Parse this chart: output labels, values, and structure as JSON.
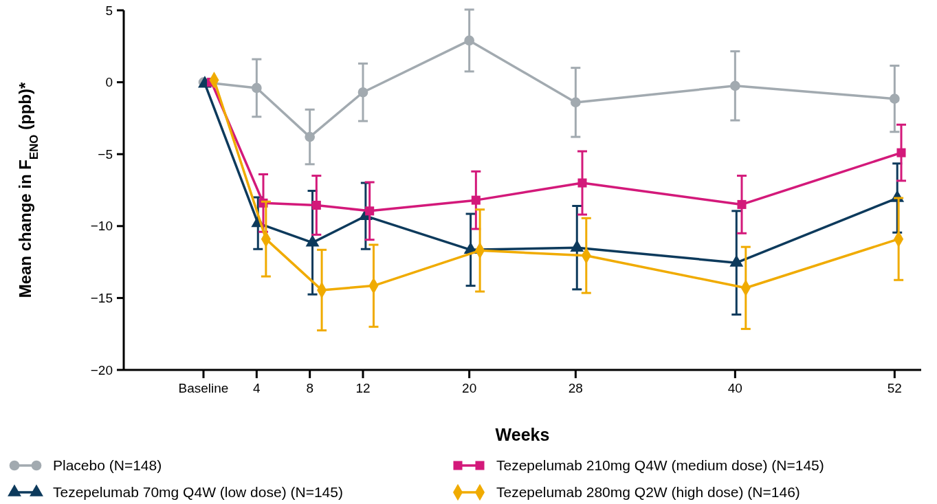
{
  "chart_data": {
    "type": "line",
    "xlabel": "Weeks",
    "ylabel": "Mean change in F$_{ENO}$ (ppb)*",
    "xlim": [
      -6,
      54
    ],
    "ylim": [
      -20,
      5
    ],
    "xticks": [
      {
        "value": 0,
        "label": "Baseline"
      },
      4,
      8,
      12,
      20,
      28,
      40,
      52
    ],
    "yticks": [
      {
        "value": -20,
        "label": "−20"
      },
      {
        "value": -15,
        "label": "−15"
      },
      {
        "value": -10,
        "label": "−10"
      },
      {
        "value": -5,
        "label": "−5"
      },
      0,
      5
    ],
    "grid": false,
    "legend": "bottom",
    "line_style": "solid",
    "series": [
      {
        "name": "Placebo (N=148)",
        "color": "#a2aab0",
        "marker": "circle",
        "x": [
          0,
          4,
          8,
          12,
          20,
          28,
          40,
          52
        ],
        "values": [
          0,
          -0.4,
          -3.8,
          -0.7,
          2.9,
          -1.4,
          -0.25,
          -1.15
        ],
        "errors": [
          null,
          2.0,
          1.9,
          2.0,
          2.15,
          2.4,
          2.4,
          2.3
        ]
      },
      {
        "name": "Tezepelumab 70mg Q4W (low dose) (N=145)",
        "color": "#0d3a5c",
        "marker": "triangle",
        "x": [
          0.1,
          4.1,
          8.2,
          12.2,
          20.1,
          28.1,
          40.1,
          52.2
        ],
        "values": [
          -0.1,
          -9.8,
          -11.15,
          -9.3,
          -11.65,
          -11.5,
          -12.55,
          -8.05
        ],
        "errors": [
          null,
          1.8,
          3.6,
          2.3,
          2.5,
          2.9,
          3.6,
          2.4
        ]
      },
      {
        "name": "Tezepelumab 210mg Q4W (medium dose)  (N=145)",
        "color": "#d3197a",
        "marker": "square",
        "x": [
          0.6,
          4.5,
          8.5,
          12.5,
          20.5,
          28.5,
          40.5,
          52.5
        ],
        "values": [
          0,
          -8.4,
          -8.55,
          -8.95,
          -8.2,
          -7.0,
          -8.5,
          -4.9
        ],
        "errors": [
          null,
          2.0,
          2.05,
          2.0,
          2.0,
          2.2,
          2.0,
          1.95
        ]
      },
      {
        "name": "Tezepelumab 280mg Q2W (high dose) (N=146)",
        "color": "#f0ab00",
        "marker": "diamond",
        "x": [
          0.8,
          4.7,
          8.9,
          12.8,
          20.8,
          28.8,
          40.8,
          52.3
        ],
        "values": [
          0.15,
          -10.9,
          -14.45,
          -14.15,
          -11.7,
          -12.05,
          -14.3,
          -10.9
        ],
        "errors": [
          null,
          2.6,
          2.8,
          2.85,
          2.85,
          2.6,
          2.85,
          2.85
        ]
      }
    ]
  }
}
